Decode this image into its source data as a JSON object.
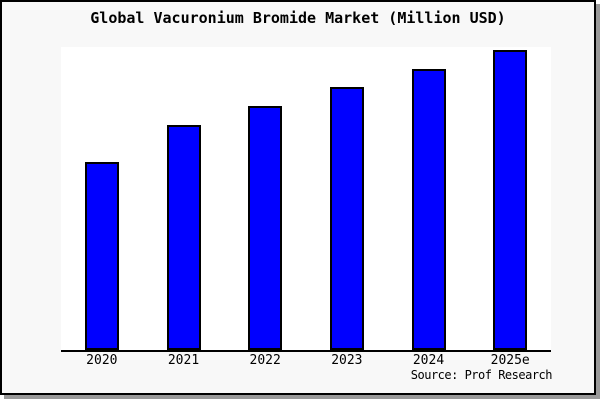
{
  "title": "Global Vacuronium Bromide Market (Million USD)",
  "source_note": "Source: Prof Research",
  "chart_data": {
    "type": "bar",
    "title": "Global Vacuronium Bromide Market (Million USD)",
    "categories": [
      "2020",
      "2021",
      "2022",
      "2023",
      "2024",
      "2025e"
    ],
    "values": [
      62.7,
      75.0,
      81.3,
      87.7,
      93.7,
      100.0
    ],
    "value_note": "relative scale estimated from bar heights; no y-axis labels shown, tallest bar (2025e) = 100",
    "xlabel": "",
    "ylabel": "",
    "ylim": [
      0,
      100
    ],
    "grid": false,
    "legend": false,
    "y_axis_visible": false,
    "bar_fill_color": "#0000ff",
    "bar_border_color": "#000000",
    "axis_line_color": "#000000",
    "plot_background": "#ffffff",
    "page_background": "#f8f8f8",
    "frame_border_color": "#000000",
    "shadow_color": "#999999",
    "source": "Source: Prof Research"
  }
}
